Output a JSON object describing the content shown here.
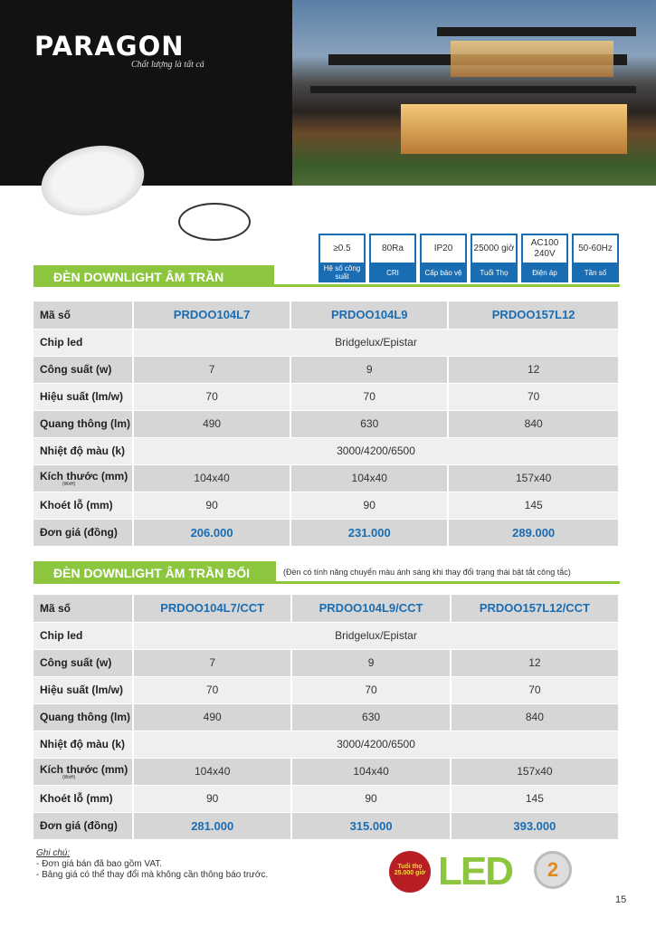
{
  "brand": {
    "logo": "PARAGON",
    "tagline": "Chất lượng là tất cả"
  },
  "specs": [
    {
      "value": "≥0.5",
      "label": "Hệ số công suất"
    },
    {
      "value": "80Ra",
      "label": "CRI"
    },
    {
      "value": "IP20",
      "label": "Cấp bảo vệ"
    },
    {
      "value": "25000 giờ",
      "label": "Tuổi Thọ"
    },
    {
      "value": "AC100 240V",
      "label": "Điện áp"
    },
    {
      "value": "50-60Hz",
      "label": "Tần số"
    }
  ],
  "colors": {
    "green": "#8cc63f",
    "blue": "#1a6db2"
  },
  "labels": {
    "code": "Mã số",
    "chip": "Chip led",
    "power": "Công suất (w)",
    "eff": "Hiệu suất (lm/w)",
    "flux": "Quang thông (lm)",
    "temp": "Nhiệt độ màu (k)",
    "size": "Kích thước (mm)",
    "size_sub": "(WxH)",
    "cut": "Khoét lỗ (mm)",
    "price": "Đơn giá (đồng)"
  },
  "section1": {
    "title": "ĐÈN DOWNLIGHT ÂM TRẦN",
    "chip": "Bridgelux/Epistar",
    "temp": "3000/4200/6500",
    "models": [
      {
        "code": "PRDOO104L7",
        "power": "7",
        "eff": "70",
        "flux": "490",
        "size": "104x40",
        "cut": "90",
        "price": "206.000"
      },
      {
        "code": "PRDOO104L9",
        "power": "9",
        "eff": "70",
        "flux": "630",
        "size": "104x40",
        "cut": "90",
        "price": "231.000"
      },
      {
        "code": "PRDOO157L12",
        "power": "12",
        "eff": "70",
        "flux": "840",
        "size": "157x40",
        "cut": "145",
        "price": "289.000"
      }
    ]
  },
  "section2": {
    "title": "ĐÈN DOWNLIGHT ÂM TRẦN ĐỔI MÀU",
    "note": "(Đèn có tính năng chuyển màu ánh sáng khi thay đổi trạng thái bật tắt công tắc)",
    "chip": "Bridgelux/Epistar",
    "temp": "3000/4200/6500",
    "models": [
      {
        "code": "PRDOO104L7/CCT",
        "power": "7",
        "eff": "70",
        "flux": "490",
        "size": "104x40",
        "cut": "90",
        "price": "281.000"
      },
      {
        "code": "PRDOO104L9/CCT",
        "power": "9",
        "eff": "70",
        "flux": "630",
        "size": "104x40",
        "cut": "90",
        "price": "315.000"
      },
      {
        "code": "PRDOO157L12/CCT",
        "power": "12",
        "eff": "70",
        "flux": "840",
        "size": "157x40",
        "cut": "145",
        "price": "393.000"
      }
    ]
  },
  "notes": {
    "title": "Ghi chú:",
    "items": [
      "- Đơn giá bán đã bao gồm VAT.",
      "- Bảng giá có thể thay đổi mà không cần thông báo trước."
    ]
  },
  "badges": {
    "lifetime": "Tuổi thọ 25.000 giờ",
    "led": "LED",
    "warranty": "2"
  },
  "page_number": "15"
}
